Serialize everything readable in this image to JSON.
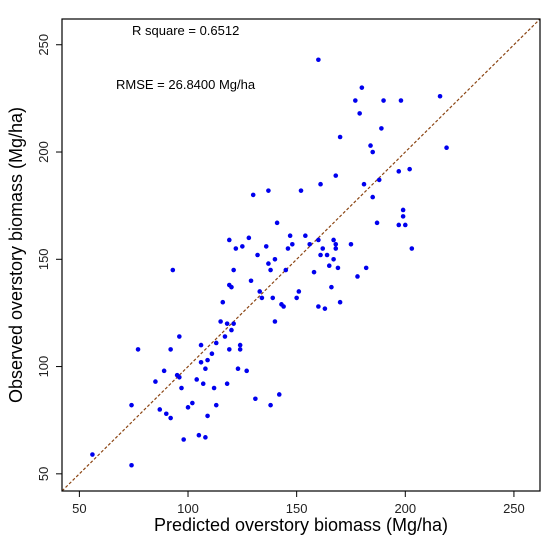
{
  "chart_data": {
    "type": "scatter",
    "title": "",
    "xlabel": "Predicted overstory biomass (Mg/ha)",
    "ylabel": "Observed overstory biomass (Mg/ha)",
    "xlim": [
      42,
      262
    ],
    "ylim": [
      42,
      262
    ],
    "xticks": [
      50,
      100,
      150,
      200,
      250
    ],
    "yticks": [
      50,
      100,
      150,
      200,
      250
    ],
    "grid": false,
    "annotations": {
      "r_square": "R square = 0.6512",
      "rmse": "RMSE = 26.8400 Mg/ha"
    },
    "reference_line": {
      "type": "1:1",
      "from": [
        42,
        42
      ],
      "to": [
        262,
        262
      ],
      "color": "#8b4513",
      "style": "dashed"
    },
    "point_color": "#0000ee",
    "points": [
      [
        56,
        59
      ],
      [
        74,
        82
      ],
      [
        74,
        54
      ],
      [
        77,
        108
      ],
      [
        85,
        93
      ],
      [
        87,
        80
      ],
      [
        89,
        98
      ],
      [
        90,
        78
      ],
      [
        92,
        76
      ],
      [
        92,
        108
      ],
      [
        93,
        145
      ],
      [
        95,
        96
      ],
      [
        96,
        95
      ],
      [
        96,
        114
      ],
      [
        97,
        90
      ],
      [
        98,
        66
      ],
      [
        100,
        81
      ],
      [
        102,
        83
      ],
      [
        104,
        94
      ],
      [
        105,
        68
      ],
      [
        106,
        102
      ],
      [
        106,
        110
      ],
      [
        107,
        92
      ],
      [
        108,
        67
      ],
      [
        108,
        99
      ],
      [
        109,
        103
      ],
      [
        109,
        77
      ],
      [
        111,
        106
      ],
      [
        112,
        90
      ],
      [
        113,
        111
      ],
      [
        113,
        82
      ],
      [
        115,
        121
      ],
      [
        116,
        130
      ],
      [
        117,
        114
      ],
      [
        118,
        120
      ],
      [
        118,
        92
      ],
      [
        119,
        108
      ],
      [
        119,
        138
      ],
      [
        119,
        159
      ],
      [
        120,
        137
      ],
      [
        120,
        117
      ],
      [
        121,
        120
      ],
      [
        121,
        145
      ],
      [
        122,
        155
      ],
      [
        123,
        99
      ],
      [
        124,
        110
      ],
      [
        124,
        108
      ],
      [
        125,
        156
      ],
      [
        127,
        98
      ],
      [
        128,
        160
      ],
      [
        129,
        140
      ],
      [
        130,
        180
      ],
      [
        131,
        85
      ],
      [
        132,
        152
      ],
      [
        133,
        135
      ],
      [
        134,
        132
      ],
      [
        136,
        156
      ],
      [
        137,
        182
      ],
      [
        137,
        148
      ],
      [
        138,
        82
      ],
      [
        138,
        145
      ],
      [
        139,
        132
      ],
      [
        140,
        121
      ],
      [
        140,
        150
      ],
      [
        141,
        167
      ],
      [
        142,
        87
      ],
      [
        143,
        129
      ],
      [
        144,
        128
      ],
      [
        145,
        145
      ],
      [
        146,
        155
      ],
      [
        147,
        161
      ],
      [
        148,
        157
      ],
      [
        150,
        132
      ],
      [
        151,
        135
      ],
      [
        152,
        182
      ],
      [
        154,
        161
      ],
      [
        156,
        157
      ],
      [
        158,
        144
      ],
      [
        160,
        243
      ],
      [
        160,
        159
      ],
      [
        160,
        128
      ],
      [
        161,
        152
      ],
      [
        161,
        185
      ],
      [
        162,
        155
      ],
      [
        163,
        127
      ],
      [
        164,
        152
      ],
      [
        165,
        147
      ],
      [
        166,
        137
      ],
      [
        167,
        159
      ],
      [
        167,
        150
      ],
      [
        168,
        189
      ],
      [
        168,
        157
      ],
      [
        168,
        155
      ],
      [
        169,
        146
      ],
      [
        170,
        207
      ],
      [
        170,
        130
      ],
      [
        175,
        157
      ],
      [
        177,
        224
      ],
      [
        178,
        142
      ],
      [
        179,
        218
      ],
      [
        180,
        230
      ],
      [
        181,
        185
      ],
      [
        182,
        146
      ],
      [
        184,
        203
      ],
      [
        185,
        200
      ],
      [
        185,
        179
      ],
      [
        187,
        167
      ],
      [
        188,
        187
      ],
      [
        189,
        211
      ],
      [
        190,
        224
      ],
      [
        197,
        191
      ],
      [
        197,
        166
      ],
      [
        198,
        224
      ],
      [
        199,
        173
      ],
      [
        199,
        170
      ],
      [
        200,
        166
      ],
      [
        202,
        192
      ],
      [
        203,
        155
      ],
      [
        216,
        226
      ],
      [
        219,
        202
      ]
    ]
  }
}
